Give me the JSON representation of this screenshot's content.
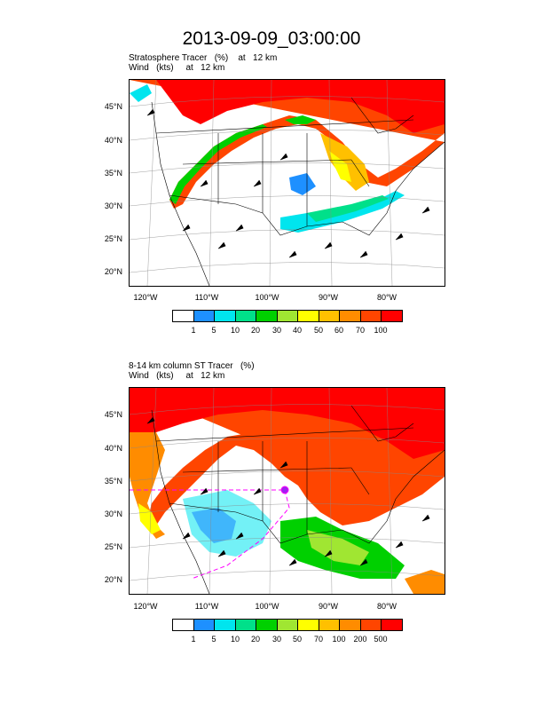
{
  "title": "2013-09-09_03:00:00",
  "panels": [
    {
      "line1": "Stratosphere Tracer   (%)    at   12 km",
      "line2": "Wind   (kts)     at   12 km",
      "colorbar": [
        "1",
        "5",
        "10",
        "20",
        "30",
        "40",
        "50",
        "60",
        "70",
        "100"
      ]
    },
    {
      "line1": "8-14 km column ST Tracer   (%)",
      "line2": "Wind   (kts)     at   12 km",
      "colorbar": [
        "1",
        "5",
        "10",
        "20",
        "30",
        "50",
        "70",
        "100",
        "200",
        "500"
      ]
    }
  ],
  "lat_labels": [
    "45°N",
    "40°N",
    "35°N",
    "30°N",
    "25°N",
    "20°N"
  ],
  "lon_labels": [
    "120°W",
    "110°W",
    "100°W",
    "90°W",
    "80°W"
  ],
  "colors": [
    "#ffffff",
    "#1e90ff",
    "#00e5ee",
    "#00e08a",
    "#00d000",
    "#a0e632",
    "#ffff00",
    "#ffc000",
    "#ff8c00",
    "#ff4500",
    "#ff0000"
  ]
}
